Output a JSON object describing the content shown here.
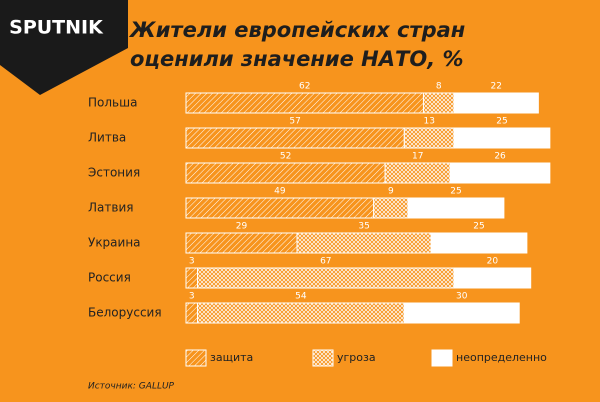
{
  "logo": "SPUTNIK",
  "source": "Источник: GALLUP",
  "chart_data": {
    "type": "bar",
    "orientation": "horizontal",
    "stacked": true,
    "title": "Жители европейских стран оценили значение НАТО, %",
    "categories": [
      "Польша",
      "Литва",
      "Эстония",
      "Латвия",
      "Украина",
      "Россия",
      "Белоруссия"
    ],
    "series": [
      {
        "name": "защита",
        "color": "#ffffff",
        "pattern": "hatch",
        "values": [
          62,
          57,
          52,
          49,
          29,
          3,
          3
        ]
      },
      {
        "name": "угроза",
        "color": "#ffffff",
        "pattern": "crosshatch",
        "values": [
          8,
          13,
          17,
          9,
          35,
          67,
          54
        ]
      },
      {
        "name": "неопределенно",
        "color": "#ffffff",
        "pattern": "solid",
        "values": [
          22,
          25,
          26,
          25,
          25,
          20,
          30
        ]
      }
    ]
  }
}
